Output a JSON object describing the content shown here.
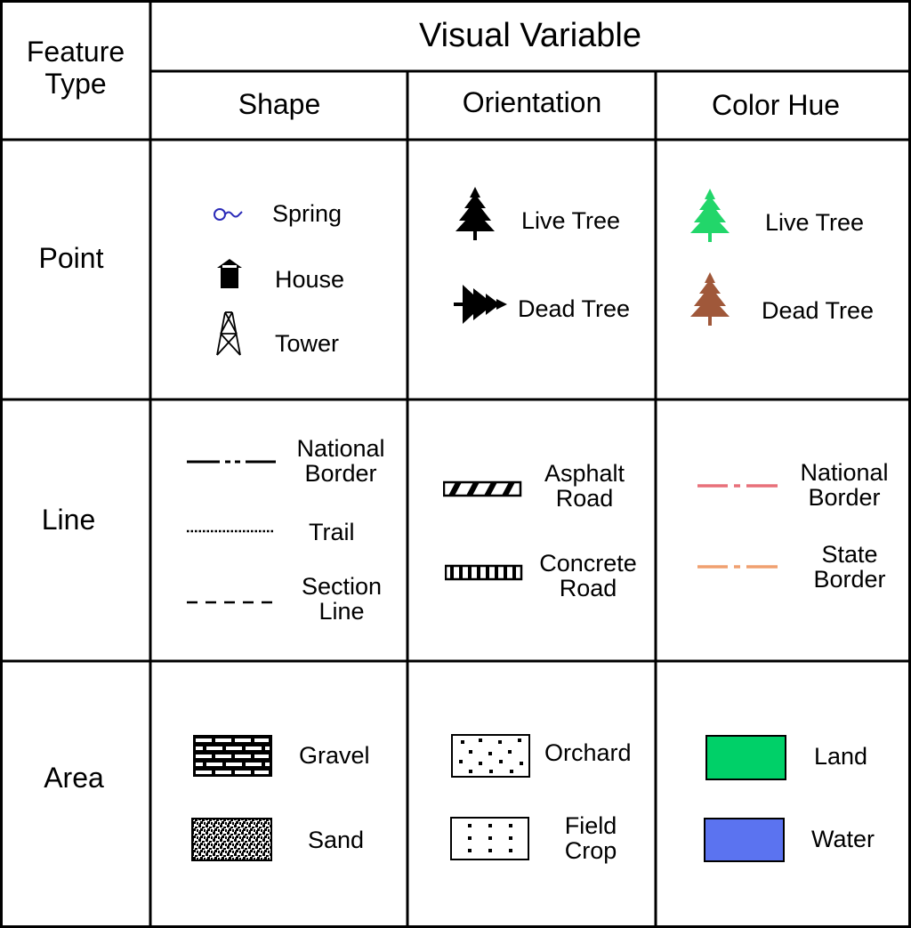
{
  "header": {
    "feature_type_line1": "Feature",
    "feature_type_line2": "Type",
    "visual_variable": "Visual Variable",
    "columns": [
      "Shape",
      "Orientation",
      "Color Hue"
    ]
  },
  "rows": [
    "Point",
    "Line",
    "Area"
  ],
  "point": {
    "shape": {
      "spring": "Spring",
      "house": "House",
      "tower": "Tower"
    },
    "orientation": {
      "live": "Live Tree",
      "dead": "Dead Tree"
    },
    "hue": {
      "live": "Live Tree",
      "dead": "Dead Tree"
    }
  },
  "line": {
    "shape": {
      "national_1": "National",
      "national_2": "Border",
      "trail": "Trail",
      "section_1": "Section",
      "section_2": "Line"
    },
    "orientation": {
      "asphalt_1": "Asphalt",
      "asphalt_2": "Road",
      "concrete_1": "Concrete",
      "concrete_2": "Road"
    },
    "hue": {
      "national_1": "National",
      "national_2": "Border",
      "state_1": "State",
      "state_2": "Border"
    }
  },
  "area": {
    "shape": {
      "gravel": "Gravel",
      "sand": "Sand"
    },
    "orientation": {
      "orchard": "Orchard",
      "field_1": "Field",
      "field_2": "Crop"
    },
    "hue": {
      "land": "Land",
      "water": "Water"
    }
  },
  "colors": {
    "spring": "#2a2ab8",
    "live_tree": "#22d66a",
    "dead_tree": "#a0583a",
    "national_border": "#e8707a",
    "state_border": "#f0a070",
    "land": "#00d068",
    "water": "#5b73f0"
  },
  "icons": [
    "spring-icon",
    "house-icon",
    "tower-icon",
    "tree-icon",
    "tree-icon-rotated"
  ]
}
